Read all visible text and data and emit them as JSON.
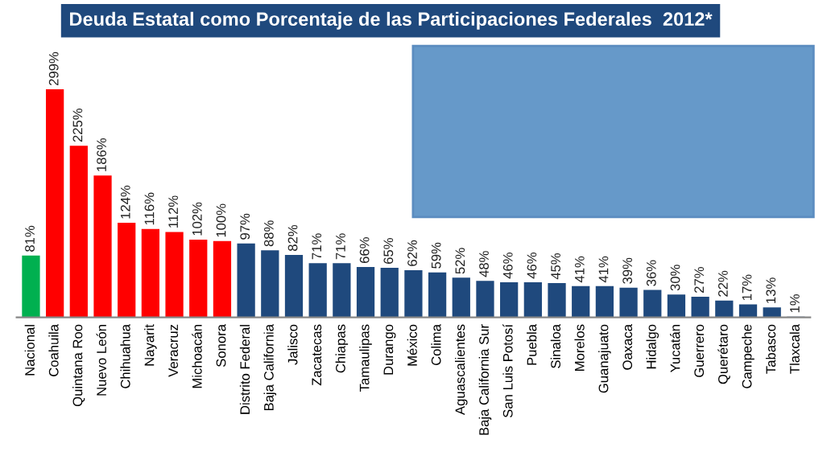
{
  "chart_data": {
    "type": "bar",
    "title": "Deuda Estatal como Porcentaje de las Participaciones Federales  2012*",
    "categories": [
      "Nacional",
      "Coahuila",
      "Quintana Roo",
      "Nuevo León",
      "Chihuahua",
      "Nayarit",
      "Veracruz",
      "Michoacán",
      "Sonora",
      "Distrito Federal",
      "Baja California",
      "Jalisco",
      "Zacatecas",
      "Chiapas",
      "Tamaulipas",
      "Durango",
      "México",
      "Colima",
      "Aguascalientes",
      "Baja California Sur",
      "San Luis Potosí",
      "Puebla",
      "Sinaloa",
      "Morelos",
      "Guanajuato",
      "Oaxaca",
      "Hidalgo",
      "Yucatán",
      "Guerrero",
      "Querétaro",
      "Campeche",
      "Tabasco",
      "Tlaxcala"
    ],
    "values": [
      81,
      299,
      225,
      186,
      124,
      116,
      112,
      102,
      100,
      97,
      88,
      82,
      71,
      71,
      66,
      65,
      62,
      59,
      52,
      48,
      46,
      46,
      45,
      41,
      41,
      39,
      36,
      30,
      27,
      22,
      17,
      13,
      1
    ],
    "value_labels": [
      "81%",
      "299%",
      "225%",
      "186%",
      "124%",
      "116%",
      "112%",
      "102%",
      "100%",
      "97%",
      "88%",
      "82%",
      "71%",
      "71%",
      "66%",
      "65%",
      "62%",
      "59%",
      "52%",
      "48%",
      "46%",
      "46%",
      "45%",
      "41%",
      "41%",
      "39%",
      "36%",
      "30%",
      "27%",
      "22%",
      "17%",
      "13%",
      "1%"
    ],
    "colors": [
      "#00b050",
      "#ff0000",
      "#ff0000",
      "#ff0000",
      "#ff0000",
      "#ff0000",
      "#ff0000",
      "#ff0000",
      "#ff0000",
      "#1f497d",
      "#1f497d",
      "#1f497d",
      "#1f497d",
      "#1f497d",
      "#1f497d",
      "#1f497d",
      "#1f497d",
      "#1f497d",
      "#1f497d",
      "#1f497d",
      "#1f497d",
      "#1f497d",
      "#1f497d",
      "#1f497d",
      "#1f497d",
      "#1f497d",
      "#1f497d",
      "#1f497d",
      "#1f497d",
      "#1f497d",
      "#1f497d",
      "#1f497d",
      "#1f497d"
    ],
    "grid": false
  }
}
